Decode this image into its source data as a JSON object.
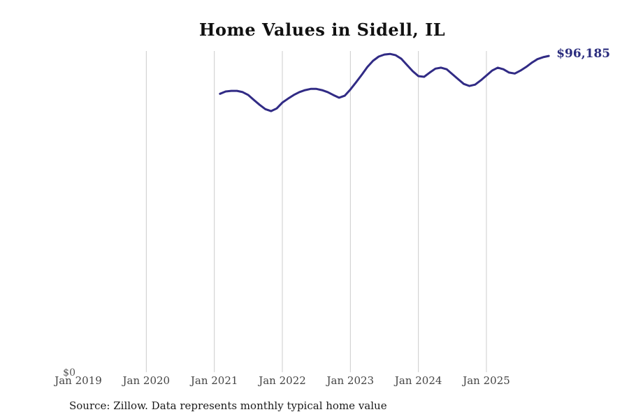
{
  "title": "Home Values in Sidell, IL",
  "source_note": "Source: Zillow. Data represents monthly typical home value",
  "colors": {
    "line": "#312b85",
    "end_label": "#2b2d7e",
    "gridline": "#cccccc",
    "axis_text": "#444444",
    "title_text": "#111111",
    "source_text": "#1a1a1a"
  },
  "chart_data": {
    "type": "line",
    "title": "Home Values in Sidell, IL",
    "xlabel": "",
    "ylabel": "",
    "ylim": [
      0,
      97700
    ],
    "grid": "vertical-only",
    "legend": "none",
    "end_label": "$96,185",
    "latest_value": 96185,
    "y_axis": {
      "zero_label": "$0"
    },
    "x_ticks": [
      {
        "label": "Jan 2019",
        "gridline": false
      },
      {
        "label": "Jan 2020",
        "gridline": true
      },
      {
        "label": "Jan 2021",
        "gridline": true
      },
      {
        "label": "Jan 2022",
        "gridline": true
      },
      {
        "label": "Jan 2023",
        "gridline": true
      },
      {
        "label": "Jan 2024",
        "gridline": true
      },
      {
        "label": "Jan 2025",
        "gridline": true
      }
    ],
    "x": [
      "2021-02",
      "2021-03",
      "2021-04",
      "2021-05",
      "2021-06",
      "2021-07",
      "2021-08",
      "2021-09",
      "2021-10",
      "2021-11",
      "2021-12",
      "2022-01",
      "2022-02",
      "2022-03",
      "2022-04",
      "2022-05",
      "2022-06",
      "2022-07",
      "2022-08",
      "2022-09",
      "2022-10",
      "2022-11",
      "2022-12",
      "2023-01",
      "2023-02",
      "2023-03",
      "2023-04",
      "2023-05",
      "2023-06",
      "2023-07",
      "2023-08",
      "2023-09",
      "2023-10",
      "2023-11",
      "2023-12",
      "2024-01",
      "2024-02",
      "2024-03",
      "2024-04",
      "2024-05",
      "2024-06",
      "2024-07",
      "2024-08",
      "2024-09",
      "2024-10",
      "2024-11",
      "2024-12",
      "2025-01",
      "2025-02",
      "2025-03",
      "2025-04",
      "2025-05",
      "2025-06",
      "2025-07",
      "2025-08",
      "2025-09",
      "2025-10",
      "2025-11",
      "2025-12"
    ],
    "values": [
      84600,
      85300,
      85500,
      85500,
      85100,
      84200,
      82700,
      81200,
      79900,
      79300,
      80100,
      81900,
      83100,
      84200,
      85100,
      85700,
      86100,
      86100,
      85700,
      85100,
      84200,
      83400,
      84000,
      85900,
      88100,
      90400,
      92800,
      94700,
      96000,
      96600,
      96800,
      96400,
      95300,
      93400,
      91500,
      90000,
      89800,
      91100,
      92300,
      92600,
      92100,
      90600,
      89100,
      87600,
      87000,
      87400,
      88700,
      90200,
      91700,
      92600,
      92100,
      91100,
      90800,
      91700,
      92800,
      94100,
      95200,
      95800,
      96185
    ]
  }
}
